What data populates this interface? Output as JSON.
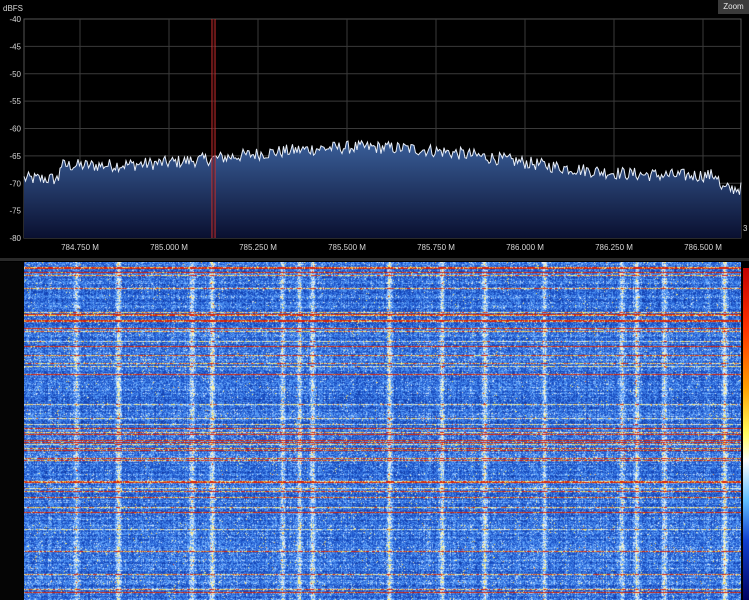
{
  "spectrum": {
    "unit_label": "dBFS",
    "y_ticks": [
      "-40",
      "-45",
      "-50",
      "-55",
      "-60",
      "-65",
      "-70",
      "-75",
      "-80"
    ],
    "x_ticks": [
      "784.750 M",
      "785.000 M",
      "785.250 M",
      "785.500 M",
      "785.750 M",
      "786.000 M",
      "786.250 M",
      "786.500 M"
    ],
    "colors": {
      "background": "#000000",
      "grid": "#3a3a3a",
      "trace": "#e8eef8",
      "fill_top": "#3a5f9a",
      "fill_bottom": "#0a1030",
      "marker": "#d03030"
    }
  },
  "toolbar": {
    "zoom_label": "Zoom"
  },
  "right_readout": "3",
  "waterfall": {
    "colors": {
      "low": "#0a2a9a",
      "mid": "#5aa0ff",
      "high": "#ffff80",
      "peak": "#e02000"
    }
  }
}
